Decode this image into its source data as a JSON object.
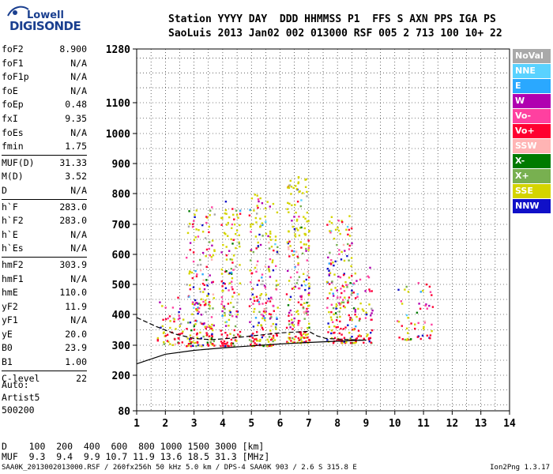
{
  "logo": {
    "line1": "Lowell",
    "line2": "DIGISONDE"
  },
  "header": {
    "line1": "Station YYYY DAY  DDD HHMMSS P1  FFS S AXN PPS IGA PS",
    "line2": "SaoLuis 2013 Jan02 002 013000 RSF 005 2 713 100 10+ 22"
  },
  "params": [
    [
      {
        "label": "foF2",
        "value": "8.900"
      },
      {
        "label": "foF1",
        "value": "N/A"
      },
      {
        "label": "foF1p",
        "value": "N/A"
      },
      {
        "label": "foE",
        "value": "N/A"
      },
      {
        "label": "foEp",
        "value": "0.48"
      },
      {
        "label": "fxI",
        "value": "9.35"
      },
      {
        "label": "foEs",
        "value": "N/A"
      },
      {
        "label": "fmin",
        "value": "1.75"
      }
    ],
    [
      {
        "label": "MUF(D)",
        "value": "31.33"
      },
      {
        "label": "M(D)",
        "value": "3.52"
      },
      {
        "label": "D",
        "value": "N/A"
      }
    ],
    [
      {
        "label": "h`F",
        "value": "283.0"
      },
      {
        "label": "h`F2",
        "value": "283.0"
      },
      {
        "label": "h`E",
        "value": "N/A"
      },
      {
        "label": "h`Es",
        "value": "N/A"
      }
    ],
    [
      {
        "label": "hmF2",
        "value": "303.9"
      },
      {
        "label": "hmF1",
        "value": "N/A"
      },
      {
        "label": "hmE",
        "value": "110.0"
      },
      {
        "label": "yF2",
        "value": "11.9"
      },
      {
        "label": "yF1",
        "value": "N/A"
      },
      {
        "label": "yE",
        "value": "20.0"
      },
      {
        "label": "B0",
        "value": "23.9"
      },
      {
        "label": "B1",
        "value": "1.00"
      }
    ],
    [
      {
        "label": "C-level",
        "value": "22"
      }
    ]
  ],
  "auto": {
    "line1": "Auto:",
    "line2": "Artist5",
    "line3": "500200"
  },
  "legend": [
    {
      "label": "NoVal",
      "color": "#a9a9a9"
    },
    {
      "label": "NNE",
      "color": "#5ad2ff"
    },
    {
      "label": "E",
      "color": "#2aa8ff"
    },
    {
      "label": "W",
      "color": "#b000b0"
    },
    {
      "label": "Vo-",
      "color": "#ff40a0"
    },
    {
      "label": "Vo+",
      "color": "#ff0030"
    },
    {
      "label": "SSW",
      "color": "#ffb4b4"
    },
    {
      "label": "X-",
      "color": "#007a00"
    },
    {
      "label": "X+",
      "color": "#78b050"
    },
    {
      "label": "SSE",
      "color": "#d4d400"
    },
    {
      "label": "NNW",
      "color": "#1010c8"
    }
  ],
  "muf_table": {
    "line1": "D    100  200  400  600  800 1000 1500 3000 [km]",
    "line2": "MUF  9.3  9.4  9.9 10.7 11.9 13.6 18.5 31.3 [MHz]"
  },
  "footer": {
    "left": "SAA0K_2013002013000.RSF / 260fx256h 50 kHz 5.0 km / DPS-4 SAA0K 903 / 2.6 S 315.8 E",
    "right": "Ion2Png 1.3.17"
  },
  "chart_data": {
    "type": "scatter",
    "title": "",
    "xlabel": "",
    "ylabel": "",
    "x_ticks": [
      1,
      2,
      3,
      4,
      5,
      6,
      7,
      8,
      9,
      10,
      11,
      12,
      13,
      14
    ],
    "y_ticks": [
      80,
      200,
      300,
      400,
      500,
      600,
      700,
      800,
      900,
      1000,
      1100,
      1280
    ],
    "xlim": [
      1,
      14
    ],
    "ylim": [
      80,
      1280
    ],
    "grid": true,
    "legend_position": "right",
    "echo_clusters": [
      {
        "x_range": [
          1.7,
          2.6
        ],
        "y_range": [
          300,
          460
        ],
        "density": 0.6
      },
      {
        "x_range": [
          2.7,
          3.7
        ],
        "y_range": [
          300,
          760
        ],
        "density": 0.7
      },
      {
        "x_range": [
          3.9,
          4.6
        ],
        "y_range": [
          300,
          780
        ],
        "density": 0.7
      },
      {
        "x_range": [
          4.9,
          5.9
        ],
        "y_range": [
          300,
          800
        ],
        "density": 0.7
      },
      {
        "x_range": [
          6.2,
          7.0
        ],
        "y_range": [
          310,
          860
        ],
        "density": 0.8
      },
      {
        "x_range": [
          7.6,
          8.5
        ],
        "y_range": [
          310,
          730
        ],
        "density": 0.75
      },
      {
        "x_range": [
          8.5,
          9.2
        ],
        "y_range": [
          310,
          560
        ],
        "density": 0.6
      },
      {
        "x_range": [
          10.0,
          11.3
        ],
        "y_range": [
          320,
          520
        ],
        "density": 0.35
      }
    ],
    "trace_lines": [
      {
        "style": "solid",
        "points": [
          [
            1,
            238
          ],
          [
            2,
            270
          ],
          [
            3,
            283
          ],
          [
            4,
            291
          ],
          [
            5,
            298
          ],
          [
            6,
            304
          ],
          [
            7,
            309
          ],
          [
            8,
            313
          ],
          [
            9,
            317
          ]
        ]
      },
      {
        "style": "dashed",
        "points": [
          [
            1,
            390
          ],
          [
            1.7,
            360
          ],
          [
            2.4,
            335
          ],
          [
            3,
            322
          ],
          [
            3.6,
            318
          ],
          [
            4.2,
            322
          ],
          [
            5,
            330
          ],
          [
            6,
            340
          ],
          [
            7,
            345
          ],
          [
            7.3,
            330
          ],
          [
            7.6,
            322
          ],
          [
            8,
            320
          ],
          [
            9,
            316
          ]
        ]
      }
    ]
  }
}
